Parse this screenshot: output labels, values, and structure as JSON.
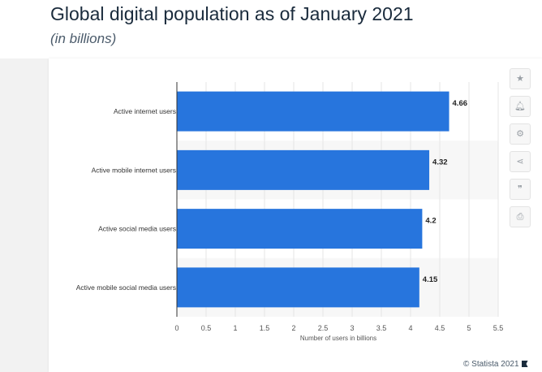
{
  "header": {
    "title": "Global digital population as of January 2021",
    "subtitle": "(in billions)"
  },
  "toolbar": {
    "items": [
      {
        "name": "star-icon"
      },
      {
        "name": "bell-icon"
      },
      {
        "name": "gear-icon"
      },
      {
        "name": "share-icon"
      },
      {
        "name": "quote-icon"
      },
      {
        "name": "print-icon"
      }
    ]
  },
  "footer": {
    "copyright": "© Statista 2021"
  },
  "colors": {
    "bar": "#2775dd",
    "grid": "#e6e6e6",
    "band": "#f7f7f7"
  },
  "chart_data": {
    "type": "bar",
    "orientation": "horizontal",
    "categories": [
      "Active internet users",
      "Active mobile internet users",
      "Active social media users",
      "Active mobile social media users"
    ],
    "values": [
      4.66,
      4.32,
      4.2,
      4.15
    ],
    "data_labels": [
      "4.66",
      "4.32",
      "4.2",
      "4.15"
    ],
    "xlabel": "Number of users in billions",
    "xlim": [
      0,
      5.5
    ],
    "xticks": [
      "0",
      "0.5",
      "1",
      "1.5",
      "2",
      "2.5",
      "3",
      "3.5",
      "4",
      "4.5",
      "5",
      "5.5"
    ],
    "grid": true
  }
}
